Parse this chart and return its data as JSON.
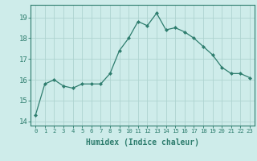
{
  "x": [
    0,
    1,
    2,
    3,
    4,
    5,
    6,
    7,
    8,
    9,
    10,
    11,
    12,
    13,
    14,
    15,
    16,
    17,
    18,
    19,
    20,
    21,
    22,
    23
  ],
  "y": [
    14.3,
    15.8,
    16.0,
    15.7,
    15.6,
    15.8,
    15.8,
    15.8,
    16.3,
    17.4,
    18.0,
    18.8,
    18.6,
    19.2,
    18.4,
    18.5,
    18.3,
    18.0,
    17.6,
    17.2,
    16.6,
    16.3,
    16.3,
    16.1
  ],
  "line_color": "#2e7d6e",
  "marker": "D",
  "marker_size": 2.0,
  "bg_color": "#ceecea",
  "grid_color": "#aed4d0",
  "xlabel": "Humidex (Indice chaleur)",
  "ylim": [
    13.8,
    19.6
  ],
  "xlim": [
    -0.5,
    23.5
  ],
  "yticks": [
    14,
    15,
    16,
    17,
    18,
    19
  ],
  "xticks": [
    0,
    1,
    2,
    3,
    4,
    5,
    6,
    7,
    8,
    9,
    10,
    11,
    12,
    13,
    14,
    15,
    16,
    17,
    18,
    19,
    20,
    21,
    22,
    23
  ],
  "tick_color": "#2e7d6e",
  "label_color": "#2e7d6e",
  "spine_color": "#2e7d6e",
  "xlabel_fontsize": 7.0,
  "ytick_fontsize": 6.5,
  "xtick_fontsize": 5.2
}
